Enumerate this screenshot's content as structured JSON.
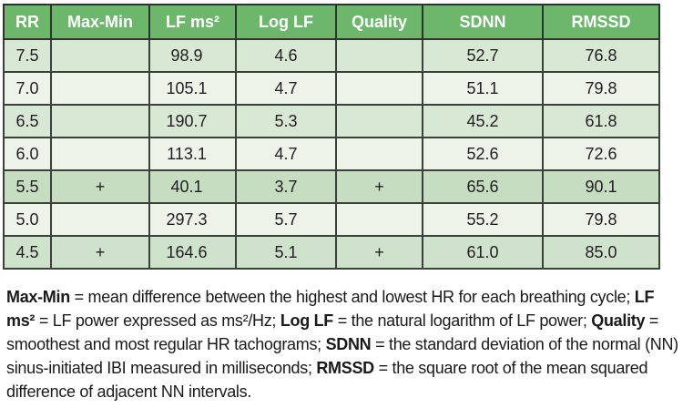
{
  "colors": {
    "header_bg": "#6cb76c",
    "header_text": "#ffffff",
    "row_green": "#d9e7d5",
    "row_light": "#eef3ea",
    "row_mid": "#c6ddc2",
    "border": "#39413a",
    "text": "#1f1f1f"
  },
  "table": {
    "headers": [
      "RR",
      "Max-Min",
      "LF ms²",
      "Log LF",
      "Quality",
      "SDNN",
      "RMSSD"
    ],
    "rows": [
      {
        "rr": "7.5",
        "max_min": "",
        "lf_ms2": "98.9",
        "log_lf": "4.6",
        "quality": "",
        "sdnn": "52.7",
        "rmssd": "76.8"
      },
      {
        "rr": "7.0",
        "max_min": "",
        "lf_ms2": "105.1",
        "log_lf": "4.7",
        "quality": "",
        "sdnn": "51.1",
        "rmssd": "79.8"
      },
      {
        "rr": "6.5",
        "max_min": "",
        "lf_ms2": "190.7",
        "log_lf": "5.3",
        "quality": "",
        "sdnn": "45.2",
        "rmssd": "61.8"
      },
      {
        "rr": "6.0",
        "max_min": "",
        "lf_ms2": "113.1",
        "log_lf": "4.7",
        "quality": "",
        "sdnn": "52.6",
        "rmssd": "72.6"
      },
      {
        "rr": "5.5",
        "max_min": "+",
        "lf_ms2": "40.1",
        "log_lf": "3.7",
        "quality": "+",
        "sdnn": "65.6",
        "rmssd": "90.1"
      },
      {
        "rr": "5.0",
        "max_min": "",
        "lf_ms2": "297.3",
        "log_lf": "5.7",
        "quality": "",
        "sdnn": "55.2",
        "rmssd": "79.8"
      },
      {
        "rr": "4.5",
        "max_min": "+",
        "lf_ms2": "164.6",
        "log_lf": "5.1",
        "quality": "+",
        "sdnn": "61.0",
        "rmssd": "85.0"
      }
    ]
  },
  "caption": {
    "segments": [
      {
        "bold": true,
        "text": "Max-Min"
      },
      {
        "bold": false,
        "text": " = mean difference between the highest and lowest HR for each breathing cycle; "
      },
      {
        "bold": true,
        "text": "LF ms²"
      },
      {
        "bold": false,
        "text": " = LF power expressed as ms²/Hz; "
      },
      {
        "bold": true,
        "text": "Log LF"
      },
      {
        "bold": false,
        "text": " = the natural logarithm of LF power; "
      },
      {
        "bold": true,
        "text": "Quality"
      },
      {
        "bold": false,
        "text": " = smoothest and most regular HR tachograms; "
      },
      {
        "bold": true,
        "text": "SDNN"
      },
      {
        "bold": false,
        "text": " = the standard deviation of the normal (NN) sinus-initiated IBI measured in milliseconds; "
      },
      {
        "bold": true,
        "text": "RMSSD"
      },
      {
        "bold": false,
        "text": " = the square root of the mean squared difference of adjacent NN intervals."
      }
    ]
  }
}
